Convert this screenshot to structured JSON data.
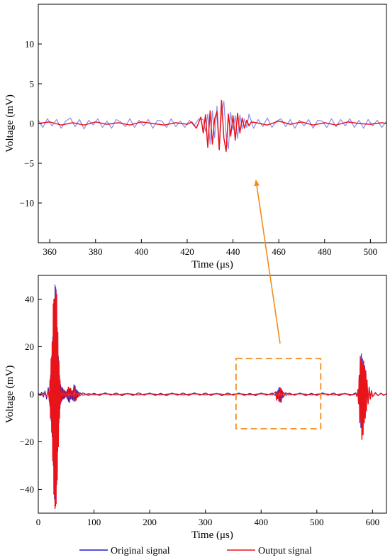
{
  "chart_data": [
    {
      "type": "line",
      "panel": "zoom",
      "xlabel": "Time (μs)",
      "ylabel": "Voltage (mV)",
      "xlim": [
        355,
        507
      ],
      "ylim": [
        -15,
        15
      ],
      "x_ticks": [
        360,
        380,
        400,
        420,
        440,
        460,
        480,
        500
      ],
      "y_ticks": [
        -10,
        -5,
        0,
        5,
        10
      ],
      "x_tick_labels": [
        "360",
        "380",
        "400",
        "420",
        "440",
        "460",
        "480",
        "500"
      ],
      "y_tick_labels": [
        "−10",
        "−5",
        "0",
        "5",
        "10"
      ],
      "series": [
        {
          "name": "Original signal",
          "color": "#8a8ef0",
          "x": [
            355,
            357,
            359,
            361,
            363,
            365,
            367,
            369,
            371,
            373,
            375,
            377,
            379,
            381,
            383,
            385,
            387,
            389,
            391,
            393,
            395,
            397,
            399,
            401,
            403,
            405,
            407,
            409,
            411,
            413,
            415,
            417,
            419,
            421,
            423,
            425,
            427,
            428,
            429,
            430,
            431,
            432,
            433,
            434,
            435,
            436,
            437,
            438,
            439,
            440,
            441,
            442,
            443,
            444,
            445,
            446,
            447,
            449,
            451,
            453,
            455,
            457,
            459,
            461,
            463,
            465,
            467,
            469,
            471,
            473,
            475,
            477,
            479,
            481,
            483,
            485,
            487,
            489,
            491,
            493,
            495,
            497,
            499,
            501,
            503,
            505,
            507
          ],
          "y": [
            0.4,
            -0.5,
            0.6,
            -0.3,
            0.5,
            -0.6,
            0.3,
            0.7,
            -0.4,
            0.5,
            -0.7,
            0.4,
            -0.2,
            0.6,
            -0.5,
            0.3,
            -0.6,
            0.5,
            0.2,
            -0.4,
            0.6,
            -0.5,
            0.4,
            -0.3,
            0.5,
            -0.6,
            0.4,
            0.3,
            -0.5,
            0.6,
            -0.4,
            0.3,
            -0.5,
            0.4,
            -0.3,
            0.6,
            0.5,
            -1.0,
            1.2,
            -2.6,
            1.6,
            -1.8,
            2.2,
            -2.9,
            1.3,
            2.8,
            -1.5,
            -3.2,
            1.4,
            -0.8,
            1.0,
            -1.9,
            1.1,
            -0.7,
            0.6,
            -0.5,
            1.2,
            -0.6,
            0.5,
            -0.4,
            0.7,
            -0.5,
            0.3,
            0.6,
            -0.4,
            0.5,
            -0.6,
            0.4,
            -0.3,
            0.5,
            -0.6,
            0.4,
            0.3,
            -0.5,
            0.6,
            -0.4,
            0.5,
            -0.3,
            0.6,
            -0.5,
            0.4,
            -0.6,
            0.5,
            -0.3,
            0.4,
            -0.5,
            0.3
          ]
        },
        {
          "name": "Output signal",
          "color": "#e8141a",
          "x": [
            355,
            360,
            365,
            370,
            375,
            380,
            385,
            390,
            395,
            400,
            405,
            410,
            415,
            420,
            422,
            424,
            426,
            427,
            428,
            429,
            430,
            431,
            432,
            433,
            434,
            435,
            436,
            437,
            438,
            439,
            440,
            441,
            442,
            443,
            444,
            445,
            446,
            447,
            448,
            450,
            455,
            460,
            465,
            470,
            475,
            480,
            485,
            490,
            495,
            500,
            505,
            507
          ],
          "y": [
            0.0,
            0.2,
            -0.2,
            0.1,
            -0.2,
            0.2,
            -0.1,
            0.1,
            -0.2,
            0.2,
            0.0,
            -0.2,
            0.1,
            -0.1,
            0.2,
            -0.6,
            0.8,
            -1.2,
            1.1,
            -3.0,
            1.6,
            -2.6,
            0.6,
            1.5,
            -3.3,
            2.9,
            -1.8,
            -3.5,
            1.2,
            -1.6,
            1.0,
            -2.1,
            1.3,
            -1.2,
            0.7,
            -0.6,
            0.4,
            -0.3,
            0.2,
            0.1,
            -0.2,
            0.3,
            -0.1,
            0.2,
            -0.2,
            0.1,
            -0.2,
            0.2,
            0.0,
            -0.1,
            0.1,
            0.0
          ]
        }
      ]
    },
    {
      "type": "line",
      "panel": "full",
      "xlabel": "Time (μs)",
      "ylabel": "Voltage (mV)",
      "xlim": [
        0,
        625
      ],
      "ylim": [
        -50,
        50
      ],
      "x_ticks": [
        0,
        100,
        200,
        300,
        400,
        500,
        600
      ],
      "y_ticks": [
        -40,
        -20,
        0,
        20,
        40
      ],
      "x_tick_labels": [
        "0",
        "100",
        "200",
        "300",
        "400",
        "500",
        "600"
      ],
      "y_tick_labels": [
        "−40",
        "−20",
        "0",
        "20",
        "40"
      ],
      "zoom_box": {
        "x": [
          355,
          507
        ],
        "y": [
          -14.5,
          15
        ]
      },
      "series": [
        {
          "name": "Original signal",
          "color": "#1a1ad0",
          "x": [
            0,
            3,
            6,
            9,
            12,
            15,
            18,
            21,
            22,
            23,
            24,
            25,
            26,
            27,
            28,
            29,
            30,
            31,
            32,
            33,
            34,
            35,
            36,
            37,
            38,
            39,
            40,
            42,
            44,
            46,
            48,
            50,
            52,
            54,
            56,
            58,
            60,
            62,
            64,
            66,
            68,
            70,
            72,
            75,
            80,
            90,
            100,
            110,
            120,
            130,
            140,
            150,
            160,
            170,
            180,
            190,
            200,
            210,
            220,
            230,
            240,
            250,
            260,
            270,
            280,
            290,
            300,
            310,
            320,
            330,
            340,
            350,
            360,
            370,
            380,
            390,
            400,
            410,
            420,
            425,
            428,
            430,
            432,
            434,
            436,
            438,
            440,
            445,
            450,
            460,
            470,
            480,
            490,
            500,
            510,
            520,
            530,
            540,
            550,
            560,
            570,
            572,
            574,
            575,
            576,
            577,
            578,
            579,
            580,
            581,
            582,
            583,
            584,
            585,
            586,
            587,
            588,
            589,
            590,
            592,
            594,
            596,
            598,
            600,
            605,
            610,
            615,
            620,
            625
          ],
          "y": [
            0.6,
            -0.6,
            0.9,
            -1.2,
            1.4,
            -2.0,
            2.8,
            -5.0,
            8.0,
            -11.0,
            16.0,
            -18.0,
            24.0,
            -30.0,
            40.0,
            -44.0,
            46.0,
            -47.0,
            44.0,
            -38.0,
            28.0,
            -24.0,
            16.0,
            -12.0,
            8.0,
            -6.0,
            4.0,
            -3.0,
            2.5,
            -2.0,
            1.5,
            -1.0,
            2.0,
            -3.0,
            2.5,
            -2.0,
            1.5,
            -2.5,
            4.0,
            -3.0,
            2.0,
            -1.5,
            1.0,
            -0.6,
            0.6,
            -0.5,
            0.4,
            -0.5,
            0.6,
            -0.4,
            0.5,
            -0.6,
            0.4,
            -0.5,
            0.6,
            -0.4,
            0.5,
            -0.5,
            0.4,
            -0.6,
            0.5,
            -0.4,
            0.5,
            -0.5,
            0.6,
            -0.4,
            0.5,
            -0.5,
            0.4,
            -0.6,
            0.5,
            -0.4,
            0.5,
            -0.5,
            0.4,
            -0.6,
            0.5,
            -0.4,
            0.5,
            -0.5,
            1.0,
            -1.8,
            2.8,
            -3.2,
            2.4,
            -1.6,
            0.8,
            -0.5,
            0.5,
            -0.4,
            0.5,
            -0.6,
            0.4,
            -0.5,
            0.6,
            -0.4,
            0.5,
            -0.6,
            0.4,
            -0.5,
            0.6,
            -1.0,
            2.0,
            -4.0,
            8.0,
            -12.0,
            16.0,
            -14.0,
            17.0,
            -18.0,
            15.0,
            -16.0,
            14.0,
            -12.0,
            12.0,
            -9.0,
            10.0,
            -7.0,
            6.0,
            -4.0,
            3.0,
            -2.0,
            1.5,
            -1.0,
            0.8,
            -0.6,
            0.5,
            -0.5,
            0.3
          ]
        },
        {
          "name": "Output signal",
          "color": "#e8141a",
          "x": [
            0,
            5,
            10,
            15,
            18,
            20,
            21,
            22,
            23,
            24,
            25,
            26,
            27,
            28,
            29,
            30,
            31,
            32,
            33,
            34,
            35,
            36,
            37,
            38,
            39,
            40,
            42,
            44,
            46,
            48,
            50,
            52,
            54,
            56,
            58,
            60,
            62,
            64,
            66,
            68,
            70,
            72,
            75,
            80,
            90,
            100,
            120,
            140,
            160,
            180,
            200,
            220,
            240,
            260,
            280,
            300,
            320,
            340,
            360,
            380,
            400,
            420,
            426,
            428,
            430,
            432,
            434,
            436,
            438,
            440,
            444,
            450,
            470,
            490,
            510,
            530,
            550,
            565,
            570,
            572,
            574,
            575,
            576,
            577,
            578,
            579,
            580,
            581,
            582,
            583,
            584,
            585,
            586,
            587,
            588,
            589,
            590,
            592,
            594,
            596,
            598,
            600,
            605,
            610,
            615,
            620,
            625
          ],
          "y": [
            0.2,
            -0.3,
            0.5,
            -0.8,
            1.5,
            -3.0,
            6.0,
            -10.0,
            15.0,
            -16.0,
            22.0,
            -28.0,
            38.0,
            -42.0,
            40.0,
            -48.0,
            45.0,
            -46.0,
            42.0,
            -36.0,
            26.0,
            -22.0,
            14.0,
            -10.0,
            6.0,
            -4.0,
            3.0,
            -2.0,
            1.8,
            -1.5,
            1.0,
            -2.0,
            3.0,
            -3.5,
            2.5,
            -2.0,
            1.5,
            -2.8,
            3.5,
            -2.5,
            1.5,
            -1.0,
            0.6,
            -0.4,
            0.2,
            -0.2,
            0.2,
            -0.2,
            0.2,
            -0.2,
            0.2,
            -0.2,
            0.2,
            -0.2,
            0.2,
            -0.2,
            0.2,
            -0.2,
            0.2,
            -0.2,
            0.2,
            -0.2,
            1.0,
            -2.5,
            1.5,
            -3.0,
            2.8,
            -3.4,
            1.4,
            -1.2,
            0.6,
            -0.2,
            0.2,
            -0.2,
            0.2,
            -0.2,
            0.2,
            -0.2,
            0.3,
            -0.8,
            2.0,
            -4.0,
            7.0,
            -10.0,
            15.0,
            -12.0,
            16.0,
            -19.0,
            13.0,
            -17.0,
            14.0,
            -12.0,
            11.0,
            -10.0,
            9.0,
            -7.0,
            6.0,
            -4.0,
            3.0,
            -2.0,
            1.5,
            -1.0,
            0.6,
            -0.5,
            0.4,
            -0.3,
            0.1
          ]
        }
      ]
    }
  ],
  "legend": [
    {
      "label": "Original signal",
      "color": "#1a1ad0"
    },
    {
      "label": "Output signal",
      "color": "#e8141a"
    }
  ],
  "annotation": {
    "arrow_color": "#f28c1c",
    "box_color": "#f28c1c"
  }
}
